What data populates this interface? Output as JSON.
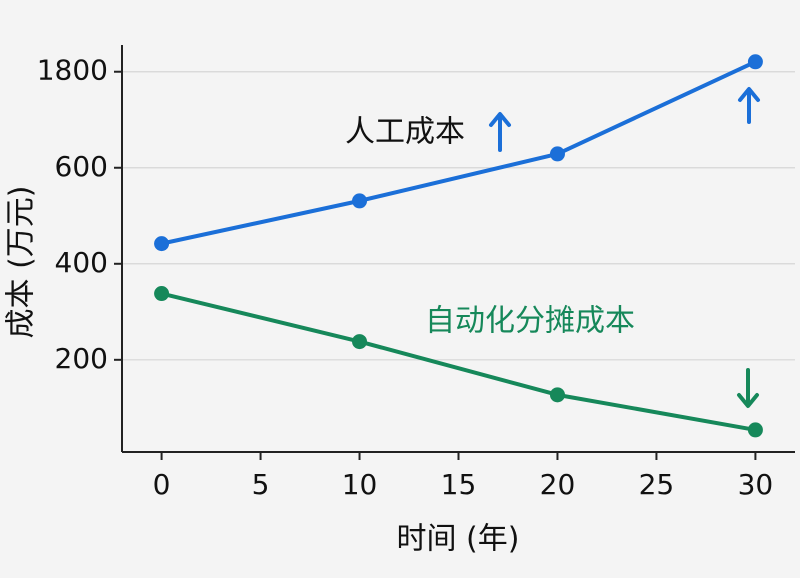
{
  "chart_data": {
    "type": "line",
    "x_label": "时间 (年)",
    "y_label": "成本 (万元)",
    "x": [
      0,
      10,
      20,
      30
    ],
    "series": [
      {
        "name": "人工成本",
        "color": "#1b6fd8",
        "values": [
          442,
          531,
          773,
          1924
        ]
      },
      {
        "name": "自动化分摊成本",
        "color": "#16885a",
        "values": [
          338,
          238,
          127,
          54
        ]
      }
    ],
    "xlim": [
      -2,
      32
    ],
    "xticks": [
      0,
      5,
      10,
      15,
      20,
      25,
      30
    ],
    "ylim": [
      8,
      2134
    ],
    "yticks": [
      200,
      400,
      600,
      1800
    ],
    "grid": true
  }
}
